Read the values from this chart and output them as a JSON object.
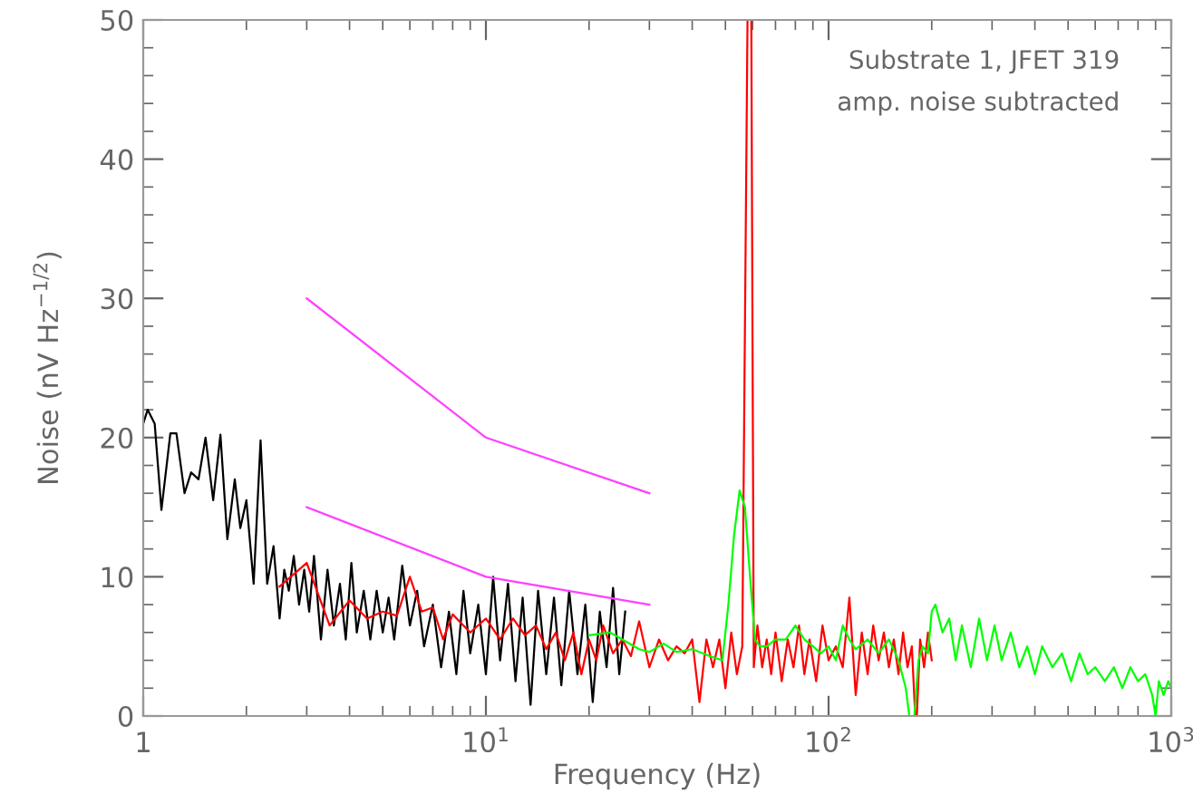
{
  "chart_data": {
    "type": "line",
    "xlabel": "Frequency (Hz)",
    "ylabel": "Noise (nV Hz$^{−1/2}$)",
    "annotations": [
      "Substrate 1, JFET 319",
      "amp. noise subtracted"
    ],
    "log": "x",
    "grid": false,
    "legend": false,
    "marker": "none",
    "line_style": "solid",
    "xlim": [
      1,
      1000
    ],
    "ylim": [
      0,
      50
    ],
    "xticks": [
      1,
      {
        "value": 10,
        "label": "10$^{1}$"
      },
      {
        "value": 100,
        "label": "10$^{2}$"
      },
      {
        "value": 1000,
        "label": "10$^{3}$"
      }
    ],
    "yticks": [
      0,
      10,
      20,
      30,
      40,
      50
    ],
    "series": [
      {
        "color": "#000000",
        "x": [
          1.0,
          1.03,
          1.08,
          1.13,
          1.2,
          1.25,
          1.32,
          1.38,
          1.45,
          1.52,
          1.6,
          1.68,
          1.76,
          1.85,
          1.92,
          2.0,
          2.1,
          2.2,
          2.3,
          2.4,
          2.5,
          2.58,
          2.66,
          2.75,
          2.85,
          2.95,
          3.05,
          3.15,
          3.3,
          3.45,
          3.6,
          3.75,
          3.9,
          4.05,
          4.2,
          4.4,
          4.6,
          4.8,
          5.0,
          5.2,
          5.4,
          5.7,
          6.0,
          6.3,
          6.6,
          7.0,
          7.4,
          7.8,
          8.2,
          8.6,
          9.0,
          9.5,
          10.0,
          10.5,
          11.0,
          11.6,
          12.2,
          12.8,
          13.5,
          14.2,
          15.0,
          15.8,
          16.6,
          17.5,
          18.5,
          19.5,
          20.5,
          21.5,
          22.5,
          23.5,
          24.5,
          25.5
        ],
        "values": [
          21.0,
          22.0,
          21.0,
          14.8,
          20.3,
          20.3,
          16.0,
          17.5,
          17.0,
          20.0,
          15.5,
          20.2,
          12.7,
          17.0,
          13.5,
          15.5,
          9.5,
          19.8,
          9.5,
          12.2,
          7.0,
          10.5,
          9.0,
          11.5,
          8.0,
          10.5,
          7.5,
          11.5,
          5.5,
          10.5,
          6.5,
          9.5,
          5.5,
          11.0,
          6.0,
          9.0,
          5.5,
          9.0,
          6.0,
          8.5,
          5.5,
          10.8,
          6.5,
          9.0,
          5.0,
          8.0,
          3.5,
          7.5,
          3.0,
          9.0,
          4.5,
          8.0,
          3.0,
          10.0,
          4.0,
          9.5,
          2.5,
          8.5,
          0.8,
          9.0,
          3.0,
          8.5,
          2.2,
          9.0,
          3.0,
          8.0,
          1.0,
          7.5,
          3.5,
          9.2,
          3.0,
          7.5
        ]
      },
      {
        "color": "#ff0000",
        "x": [
          2.5,
          3.0,
          3.5,
          4.0,
          4.5,
          5.0,
          5.5,
          6.0,
          6.5,
          7.0,
          7.5,
          8.0,
          9.0,
          10.0,
          11.0,
          12.0,
          13.0,
          14.0,
          15.0,
          16.0,
          17.0,
          18.0,
          19.0,
          20.0,
          21.0,
          22.0,
          23.5,
          25.0,
          26.5,
          28.0,
          30.0,
          32.0,
          34.0,
          36.0,
          38.0,
          40.0,
          42.0,
          44.0,
          46.0,
          48.0,
          50.0,
          52.0,
          54.0,
          56.0,
          58.0,
          59.5,
          60.5,
          62.0,
          64.0,
          66.0,
          68.0,
          70.0,
          73.0,
          76.0,
          79.0,
          82.0,
          85.0,
          88.0,
          92.0,
          96.0,
          100.0,
          105.0,
          110.0,
          115.0,
          120.0,
          125.0,
          130.0,
          135.0,
          140.0,
          145.0,
          150.0,
          155.0,
          160.0,
          165.0,
          170.0,
          175.0,
          179.0,
          181.0,
          185.0,
          190.0,
          195.0,
          200.0
        ],
        "values": [
          9.3,
          11.0,
          6.5,
          8.3,
          7.0,
          7.5,
          7.2,
          10.0,
          7.5,
          7.8,
          5.5,
          7.3,
          6.0,
          7.0,
          5.5,
          7.0,
          5.8,
          6.5,
          4.8,
          6.0,
          4.0,
          6.0,
          3.0,
          5.5,
          4.0,
          6.5,
          4.5,
          5.5,
          4.3,
          6.8,
          3.5,
          5.5,
          4.0,
          5.0,
          4.5,
          5.5,
          1.0,
          5.5,
          3.5,
          5.5,
          2.0,
          6.0,
          3.0,
          5.0,
          50.0,
          50.0,
          3.5,
          6.5,
          3.5,
          5.5,
          3.0,
          6.0,
          2.5,
          5.5,
          3.5,
          6.5,
          3.0,
          5.5,
          2.5,
          6.5,
          4.0,
          5.0,
          3.5,
          8.5,
          1.5,
          6.0,
          3.0,
          6.5,
          4.0,
          6.0,
          3.5,
          5.5,
          3.0,
          6.0,
          3.5,
          5.0,
          0.0,
          0.0,
          5.5,
          3.5,
          6.0,
          4.0
        ]
      },
      {
        "color": "#00ff00",
        "x": [
          20.0,
          23.0,
          25.0,
          28.0,
          30.0,
          33.0,
          36.0,
          40.0,
          45.0,
          49.0,
          51.0,
          53.0,
          55.0,
          57.0,
          59.0,
          61.0,
          63.0,
          66.0,
          70.0,
          75.0,
          80.0,
          85.0,
          90.0,
          95.0,
          100.0,
          105.0,
          110.0,
          115.0,
          120.0,
          130.0,
          140.0,
          150.0,
          160.0,
          168.0,
          172.0,
          178.0,
          183.0,
          188.0,
          195.0,
          200.0,
          205.0,
          215.0,
          225.0,
          235.0,
          245.0,
          260.0,
          275.0,
          290.0,
          305.0,
          320.0,
          340.0,
          360.0,
          380.0,
          400.0,
          420.0,
          450.0,
          480.0,
          510.0,
          540.0,
          570.0,
          600.0,
          640.0,
          680.0,
          720.0,
          760.0,
          800.0,
          840.0,
          880.0,
          900.0,
          920.0,
          950.0,
          980.0,
          1000.0
        ],
        "values": [
          5.8,
          6.0,
          5.5,
          4.8,
          4.6,
          5.2,
          4.6,
          4.8,
          4.3,
          4.0,
          8.0,
          13.0,
          16.2,
          15.0,
          10.0,
          5.5,
          5.0,
          5.0,
          5.5,
          5.5,
          6.5,
          5.5,
          5.0,
          4.5,
          5.0,
          4.0,
          6.5,
          5.5,
          4.8,
          5.5,
          4.5,
          5.5,
          4.0,
          2.0,
          0.0,
          0.0,
          4.0,
          5.0,
          4.5,
          7.5,
          8.0,
          6.0,
          7.0,
          4.0,
          6.5,
          3.5,
          7.0,
          4.0,
          6.5,
          4.0,
          6.0,
          3.5,
          5.0,
          3.0,
          5.0,
          3.5,
          4.5,
          2.5,
          4.5,
          3.0,
          3.5,
          2.5,
          3.5,
          2.0,
          3.5,
          2.5,
          3.0,
          1.5,
          0.0,
          2.5,
          1.5,
          2.5,
          2.0
        ]
      },
      {
        "color": "#ff40ff",
        "x": [
          3,
          10,
          30
        ],
        "values": [
          30,
          20,
          16
        ]
      },
      {
        "color": "#ff40ff",
        "x": [
          3,
          10,
          30
        ],
        "values": [
          15,
          10,
          8
        ]
      }
    ]
  }
}
